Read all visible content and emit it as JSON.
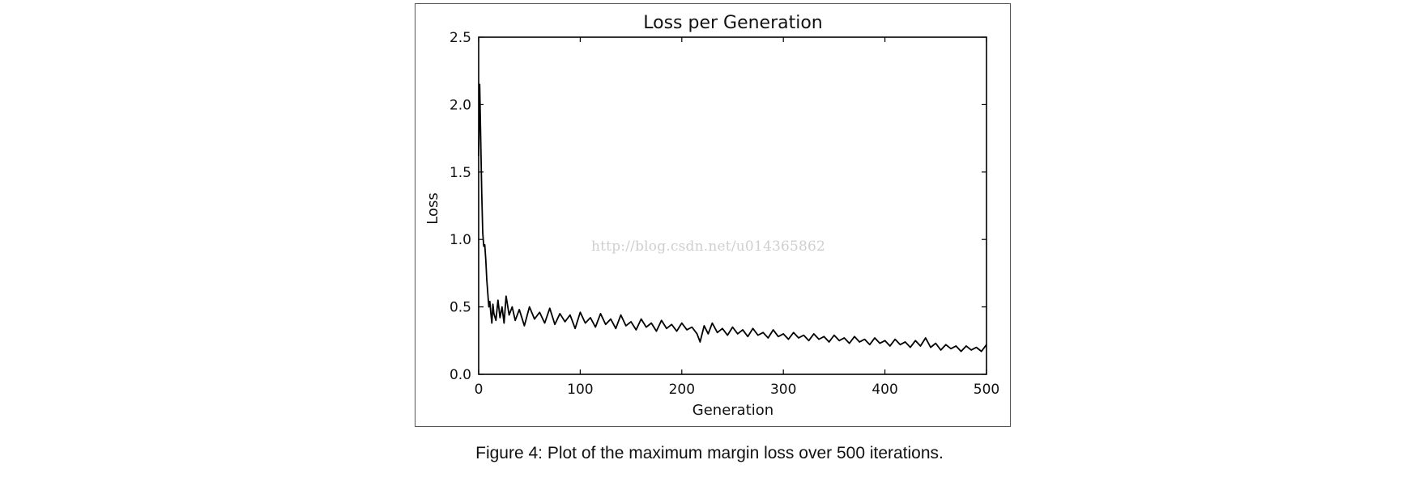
{
  "caption": "Figure 4: Plot of the maximum margin loss over 500 iterations.",
  "watermark": "http://blog.csdn.net/u014365862",
  "colors": {
    "line": "#000000",
    "axes": "#000000",
    "frame": "#555555",
    "watermark": "#cfcfcf"
  },
  "chart_data": {
    "type": "line",
    "title": "Loss per Generation",
    "xlabel": "Generation",
    "ylabel": "Loss",
    "xlim": [
      0,
      500
    ],
    "ylim": [
      0.0,
      2.5
    ],
    "xticks": [
      0,
      100,
      200,
      300,
      400,
      500
    ],
    "xtick_labels": [
      "0",
      "100",
      "200",
      "300",
      "400",
      "500"
    ],
    "yticks": [
      0.0,
      0.5,
      1.0,
      1.5,
      2.0,
      2.5
    ],
    "ytick_labels": [
      "0.0",
      "0.5",
      "1.0",
      "1.5",
      "2.0",
      "2.5"
    ],
    "grid": false,
    "legend": "none",
    "series": [
      {
        "x": [
          0,
          1,
          2,
          3,
          4,
          5,
          6,
          7,
          8,
          9,
          10,
          11,
          12,
          13,
          14,
          15,
          17,
          19,
          21,
          23,
          25,
          27,
          30,
          33,
          36,
          40,
          45,
          50,
          55,
          60,
          65,
          70,
          75,
          80,
          85,
          90,
          95,
          100,
          105,
          110,
          115,
          120,
          125,
          130,
          135,
          140,
          145,
          150,
          155,
          160,
          165,
          170,
          175,
          180,
          185,
          190,
          195,
          200,
          205,
          210,
          215,
          218,
          222,
          226,
          230,
          235,
          240,
          245,
          250,
          255,
          260,
          265,
          270,
          275,
          280,
          285,
          290,
          295,
          300,
          305,
          310,
          315,
          320,
          325,
          330,
          335,
          340,
          345,
          350,
          355,
          360,
          365,
          370,
          375,
          380,
          385,
          390,
          395,
          400,
          405,
          410,
          415,
          420,
          425,
          430,
          435,
          440,
          445,
          450,
          455,
          460,
          465,
          470,
          475,
          480,
          485,
          490,
          495,
          500
        ],
        "y": [
          1.62,
          2.15,
          1.75,
          1.35,
          1.05,
          0.95,
          0.96,
          0.85,
          0.7,
          0.6,
          0.5,
          0.54,
          0.45,
          0.38,
          0.52,
          0.45,
          0.4,
          0.55,
          0.42,
          0.5,
          0.38,
          0.58,
          0.44,
          0.5,
          0.4,
          0.48,
          0.36,
          0.5,
          0.41,
          0.46,
          0.38,
          0.49,
          0.37,
          0.45,
          0.39,
          0.44,
          0.34,
          0.46,
          0.38,
          0.42,
          0.35,
          0.45,
          0.37,
          0.41,
          0.34,
          0.44,
          0.36,
          0.39,
          0.33,
          0.41,
          0.35,
          0.38,
          0.32,
          0.4,
          0.34,
          0.37,
          0.32,
          0.38,
          0.33,
          0.35,
          0.3,
          0.24,
          0.36,
          0.3,
          0.38,
          0.31,
          0.34,
          0.29,
          0.35,
          0.3,
          0.33,
          0.28,
          0.34,
          0.29,
          0.31,
          0.27,
          0.33,
          0.28,
          0.3,
          0.26,
          0.31,
          0.27,
          0.29,
          0.25,
          0.3,
          0.26,
          0.28,
          0.24,
          0.29,
          0.25,
          0.27,
          0.23,
          0.28,
          0.24,
          0.26,
          0.22,
          0.27,
          0.23,
          0.25,
          0.21,
          0.26,
          0.22,
          0.24,
          0.2,
          0.25,
          0.21,
          0.27,
          0.2,
          0.23,
          0.18,
          0.22,
          0.19,
          0.21,
          0.17,
          0.21,
          0.18,
          0.2,
          0.17,
          0.22
        ]
      }
    ]
  }
}
